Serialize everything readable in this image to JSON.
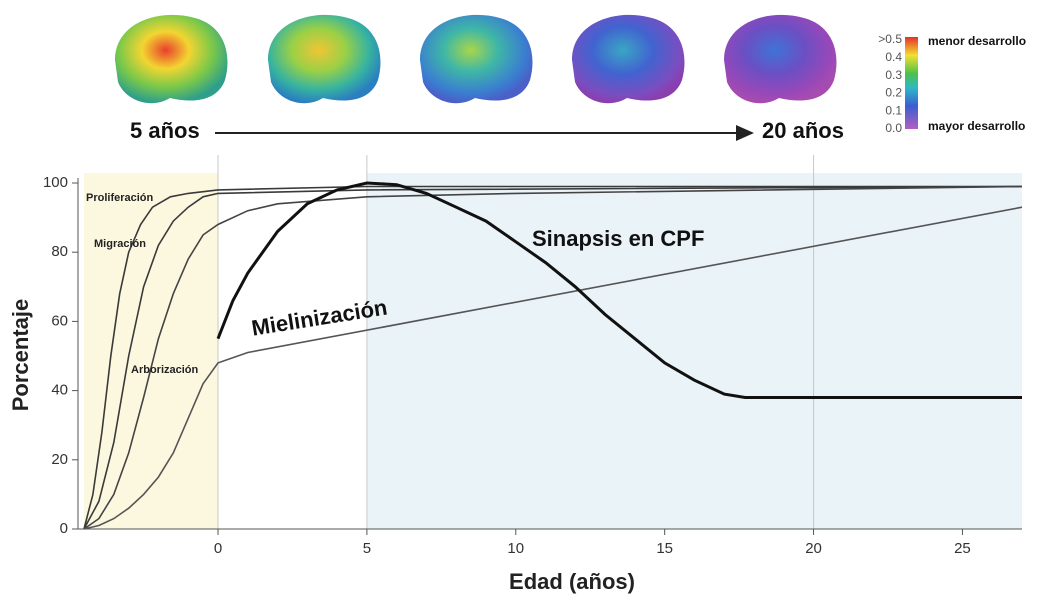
{
  "chart_data": {
    "type": "line",
    "y_label": "Porcentaje",
    "x_label": "Edad (años)",
    "xlim": [
      -4.5,
      27
    ],
    "ylim": [
      0,
      100
    ],
    "xticks": [
      0,
      5,
      10,
      15,
      20,
      25
    ],
    "yticks": [
      0,
      20,
      40,
      60,
      80,
      100
    ],
    "vlines": [
      0,
      5,
      20
    ],
    "shaded_regions": [
      {
        "xlim": [
          -4.5,
          0
        ],
        "color": "#fcf8e0"
      },
      {
        "xlim": [
          5,
          27
        ],
        "color": "#e9f3f8"
      }
    ],
    "series": [
      {
        "name": "Proliferación",
        "color": "#3a3a3a",
        "x": [
          -4.5,
          -4.2,
          -3.9,
          -3.6,
          -3.3,
          -3,
          -2.6,
          -2.2,
          -1.6,
          -1,
          0,
          5,
          10,
          20,
          27
        ],
        "values": [
          0,
          10,
          28,
          50,
          68,
          80,
          88,
          93,
          96,
          97,
          98,
          99,
          99,
          99,
          99
        ]
      },
      {
        "name": "Migración",
        "color": "#3a3a3a",
        "x": [
          -4.5,
          -4,
          -3.5,
          -3,
          -2.5,
          -2,
          -1.5,
          -1,
          -0.5,
          0,
          5,
          27
        ],
        "values": [
          0,
          8,
          25,
          50,
          70,
          82,
          89,
          93,
          96,
          97,
          98,
          99
        ]
      },
      {
        "name": "Arborización",
        "color": "#444444",
        "x": [
          -4.5,
          -4,
          -3.5,
          -3,
          -2.5,
          -2,
          -1.5,
          -1,
          -0.5,
          0,
          1,
          2,
          5,
          10,
          27
        ],
        "values": [
          0,
          3,
          10,
          22,
          38,
          55,
          68,
          78,
          85,
          88,
          92,
          94,
          96,
          97,
          99
        ]
      },
      {
        "name": "Mielinización",
        "color": "#555555",
        "x": [
          -4.5,
          -4,
          -3.5,
          -3,
          -2.5,
          -2,
          -1.5,
          -1,
          -0.5,
          0,
          1,
          27
        ],
        "values": [
          0,
          1,
          3,
          6,
          10,
          15,
          22,
          32,
          42,
          48,
          51,
          93
        ]
      },
      {
        "name": "Sinapsis en CPF",
        "color": "#111111",
        "x": [
          0,
          0.5,
          1,
          2,
          3,
          4,
          5,
          6,
          7,
          8,
          9,
          10,
          11,
          12,
          13,
          14,
          15,
          16,
          17,
          17.7,
          27
        ],
        "values": [
          55,
          66,
          74,
          86,
          94,
          98,
          100,
          99.5,
          97,
          93,
          89,
          83,
          77,
          70,
          62,
          55,
          48,
          43,
          39,
          38,
          38
        ]
      }
    ],
    "annotations": {
      "start": "5 años",
      "end": "20 años"
    },
    "colorbar": {
      "ticks": [
        {
          "value": 0.5,
          "label": ">0.5"
        },
        0.4,
        0.3,
        0.2,
        0.1,
        {
          "value": 0,
          "label": "0.0"
        }
      ],
      "top_label": "menor desarrollo",
      "bottom_label": "mayor desarrollo"
    }
  }
}
